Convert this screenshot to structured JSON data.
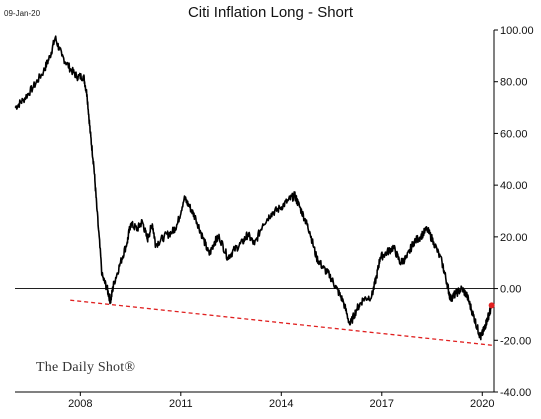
{
  "header": {
    "date_stamp": "09-Jan-20",
    "title": "Citi Inflation Long - Short"
  },
  "watermark": "The Daily Shot®",
  "colors": {
    "series": "#000000",
    "trendline": "#e02020",
    "last_point": "#e02020",
    "zero_line": "#000000"
  },
  "chart_data": {
    "type": "line",
    "title": "Citi Inflation Long - Short",
    "xlabel": "",
    "ylabel": "",
    "xlim": [
      2006.05,
      2020.35
    ],
    "ylim": [
      -40,
      100
    ],
    "y_axis_side": "right",
    "y_ticks": [
      100,
      80,
      60,
      40,
      20,
      0,
      -20,
      -40
    ],
    "y_tick_labels": [
      "100.00",
      "80.00",
      "60.00",
      "40.00",
      "20.00",
      "0.00",
      "-20.00",
      "-40.00"
    ],
    "x_ticks": [
      2008,
      2011,
      2014,
      2017,
      2020
    ],
    "x_tick_labels": [
      "2008",
      "2011",
      "2014",
      "2017",
      "2020"
    ],
    "grid": false,
    "legend": "none",
    "reference_line": {
      "y": 0
    },
    "series": [
      {
        "points": [
          [
            2006.05,
            70
          ],
          [
            2006.3,
            73
          ],
          [
            2006.6,
            78
          ],
          [
            2006.9,
            84
          ],
          [
            2007.1,
            90
          ],
          [
            2007.25,
            97
          ],
          [
            2007.45,
            90
          ],
          [
            2007.7,
            85
          ],
          [
            2007.9,
            82
          ],
          [
            2008.1,
            82
          ],
          [
            2008.2,
            75
          ],
          [
            2008.3,
            60
          ],
          [
            2008.4,
            48
          ],
          [
            2008.5,
            30
          ],
          [
            2008.65,
            5
          ],
          [
            2008.8,
            0
          ],
          [
            2008.9,
            -5
          ],
          [
            2009.0,
            2
          ],
          [
            2009.2,
            10
          ],
          [
            2009.4,
            18
          ],
          [
            2009.5,
            25
          ],
          [
            2009.7,
            23
          ],
          [
            2009.85,
            26
          ],
          [
            2010.0,
            19
          ],
          [
            2010.15,
            25
          ],
          [
            2010.25,
            17
          ],
          [
            2010.5,
            20
          ],
          [
            2010.75,
            22
          ],
          [
            2010.9,
            25
          ],
          [
            2011.1,
            35
          ],
          [
            2011.25,
            32
          ],
          [
            2011.45,
            27
          ],
          [
            2011.65,
            20
          ],
          [
            2011.85,
            13
          ],
          [
            2012.0,
            18
          ],
          [
            2012.15,
            20
          ],
          [
            2012.4,
            12
          ],
          [
            2012.6,
            15
          ],
          [
            2012.85,
            18
          ],
          [
            2013.0,
            21
          ],
          [
            2013.2,
            17
          ],
          [
            2013.45,
            25
          ],
          [
            2013.7,
            29
          ],
          [
            2013.95,
            31
          ],
          [
            2014.2,
            34
          ],
          [
            2014.4,
            36
          ],
          [
            2014.5,
            33
          ],
          [
            2014.7,
            27
          ],
          [
            2014.85,
            22
          ],
          [
            2015.05,
            12
          ],
          [
            2015.25,
            8
          ],
          [
            2015.45,
            5
          ],
          [
            2015.65,
            0
          ],
          [
            2015.85,
            -5
          ],
          [
            2016.05,
            -14
          ],
          [
            2016.25,
            -8
          ],
          [
            2016.45,
            -4
          ],
          [
            2016.7,
            -3
          ],
          [
            2016.85,
            5
          ],
          [
            2016.95,
            12
          ],
          [
            2017.15,
            14
          ],
          [
            2017.35,
            16
          ],
          [
            2017.55,
            10
          ],
          [
            2017.75,
            12
          ],
          [
            2017.95,
            18
          ],
          [
            2018.15,
            20
          ],
          [
            2018.35,
            23
          ],
          [
            2018.55,
            18
          ],
          [
            2018.8,
            10
          ],
          [
            2018.95,
            2
          ],
          [
            2019.05,
            -4
          ],
          [
            2019.2,
            -2
          ],
          [
            2019.4,
            0
          ],
          [
            2019.55,
            -3
          ],
          [
            2019.7,
            -9
          ],
          [
            2019.85,
            -15
          ],
          [
            2019.95,
            -19
          ],
          [
            2020.05,
            -16
          ],
          [
            2020.12,
            -13
          ],
          [
            2020.2,
            -10
          ],
          [
            2020.28,
            -7
          ]
        ]
      }
    ],
    "trendline": {
      "style": "dashed",
      "points": [
        [
          2007.7,
          -4.5
        ],
        [
          2020.35,
          -22
        ]
      ]
    },
    "last_point": [
      2020.28,
      -6.5
    ]
  }
}
